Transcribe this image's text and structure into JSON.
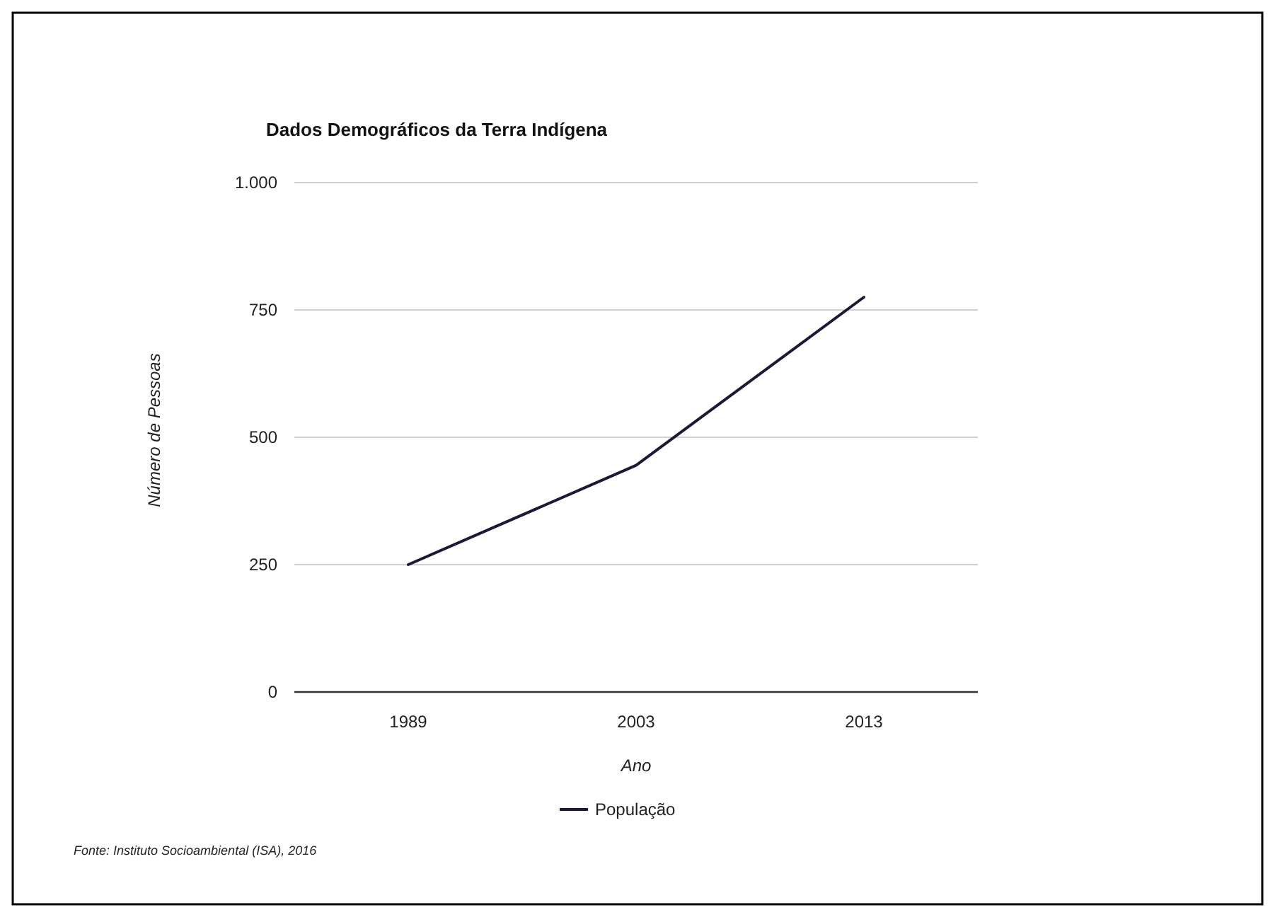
{
  "chart_data": {
    "type": "line",
    "title": "Dados Demográficos da Terra Indígena",
    "xlabel": "Ano",
    "ylabel": "Número de Pessoas",
    "categories": [
      "1989",
      "2003",
      "2013"
    ],
    "series": [
      {
        "name": "População",
        "color": "#1c1836",
        "values": [
          250,
          445,
          775
        ]
      }
    ],
    "ylim": [
      0,
      1000
    ],
    "yticks": [
      0,
      250,
      500,
      750,
      {
        "value": 1000,
        "label": "1.000"
      }
    ],
    "grid": "y",
    "legend": "bottom",
    "marker": "none",
    "line_style": "solid",
    "annotations": [
      "Fonte: Instituto Socioambiental (ISA), 2016"
    ]
  }
}
